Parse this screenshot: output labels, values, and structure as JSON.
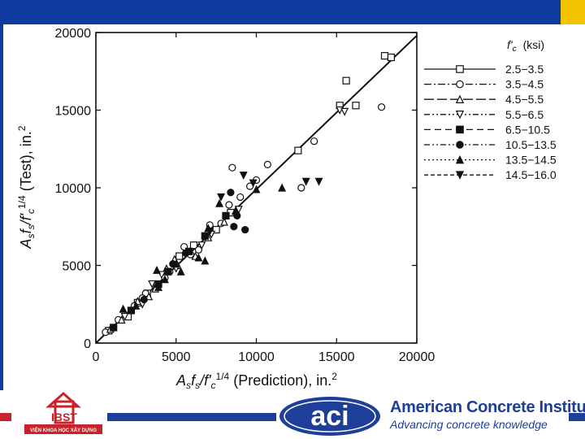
{
  "header": {
    "bar_color": "#0d3a9c",
    "accent_color": "#f2c500"
  },
  "chart_data": {
    "type": "scatter",
    "xlabel_parts": [
      "A",
      "s",
      "f",
      "s",
      "/f'",
      "c",
      "1/4",
      " (Prediction), in.",
      "2"
    ],
    "ylabel_parts": [
      "A",
      "s",
      "f",
      "s",
      "/f'",
      "c",
      "1/4",
      " (Test), in.",
      "2"
    ],
    "xlim": [
      0,
      20000
    ],
    "ylim": [
      0,
      20000
    ],
    "x_ticks": [
      "0",
      "5000",
      "10000",
      "15000",
      "20000"
    ],
    "y_ticks": [
      "0",
      "5000",
      "10000",
      "15000",
      "20000"
    ],
    "legend_placement": "right",
    "legend_header": [
      "f'",
      "c",
      "(ksi)"
    ],
    "fit_line": {
      "x": [
        0,
        20000
      ],
      "y": [
        0,
        19800
      ]
    },
    "series": [
      {
        "name": "2.5−3.5",
        "marker": "open-square",
        "dash": "solid",
        "points": [
          [
            800,
            800
          ],
          [
            2000,
            1700
          ],
          [
            3200,
            3200
          ],
          [
            5200,
            5600
          ],
          [
            7500,
            7300
          ],
          [
            8400,
            8400
          ],
          [
            12600,
            12400
          ],
          [
            15200,
            15300
          ],
          [
            15600,
            16900
          ],
          [
            16200,
            15300
          ],
          [
            18000,
            18500
          ],
          [
            18400,
            18400
          ],
          [
            2600,
            2600
          ],
          [
            6100,
            6300
          ]
        ]
      },
      {
        "name": "3.5−4.5",
        "marker": "open-circle",
        "dash": "dash-dot",
        "points": [
          [
            600,
            700
          ],
          [
            1400,
            1500
          ],
          [
            2400,
            2400
          ],
          [
            3100,
            3200
          ],
          [
            3800,
            3600
          ],
          [
            4600,
            4600
          ],
          [
            5500,
            6200
          ],
          [
            6400,
            6000
          ],
          [
            7100,
            7600
          ],
          [
            7800,
            7700
          ],
          [
            8500,
            11300
          ],
          [
            9000,
            9400
          ],
          [
            10000,
            10500
          ],
          [
            10700,
            11500
          ],
          [
            12800,
            10000
          ],
          [
            13600,
            13000
          ],
          [
            17800,
            15200
          ],
          [
            2900,
            2900
          ],
          [
            4300,
            4200
          ],
          [
            5900,
            5700
          ],
          [
            8300,
            8900
          ],
          [
            9600,
            10100
          ]
        ]
      },
      {
        "name": "4.5−5.5",
        "marker": "open-triangle",
        "dash": "long-dash",
        "points": [
          [
            900,
            900
          ],
          [
            1600,
            1500
          ],
          [
            2600,
            2700
          ],
          [
            3700,
            3500
          ],
          [
            4400,
            4800
          ],
          [
            5100,
            5000
          ],
          [
            6200,
            5600
          ],
          [
            7000,
            6800
          ],
          [
            8000,
            7800
          ],
          [
            4900,
            5400
          ],
          [
            3300,
            3000
          ]
        ]
      },
      {
        "name": "5.5−6.5",
        "marker": "open-triangle-down",
        "dash": "dash-dot-dot",
        "points": [
          [
            1800,
            1700
          ],
          [
            2900,
            2500
          ],
          [
            4100,
            4400
          ],
          [
            5000,
            4800
          ],
          [
            7200,
            7000
          ],
          [
            8900,
            8600
          ],
          [
            15200,
            15000
          ],
          [
            15500,
            14900
          ],
          [
            3500,
            3800
          ],
          [
            6600,
            6300
          ]
        ]
      },
      {
        "name": "6.5−10.5",
        "marker": "filled-square",
        "dash": "dash",
        "points": [
          [
            1100,
            1000
          ],
          [
            2200,
            2100
          ],
          [
            4500,
            4600
          ],
          [
            5800,
            5900
          ],
          [
            8100,
            8200
          ],
          [
            3900,
            3800
          ],
          [
            6800,
            6900
          ]
        ]
      },
      {
        "name": "10.5−13.5",
        "marker": "filled-circle",
        "dash": "dash-dot-dot",
        "points": [
          [
            3000,
            2800
          ],
          [
            5600,
            5800
          ],
          [
            8400,
            9700
          ],
          [
            8600,
            7500
          ],
          [
            9300,
            7300
          ],
          [
            8800,
            8200
          ],
          [
            4800,
            5100
          ]
        ]
      },
      {
        "name": "13.5−14.5",
        "marker": "filled-triangle",
        "dash": "dotted",
        "points": [
          [
            1700,
            2200
          ],
          [
            2500,
            2400
          ],
          [
            3800,
            4700
          ],
          [
            4300,
            4100
          ],
          [
            5000,
            5100
          ],
          [
            5300,
            4600
          ],
          [
            6400,
            5500
          ],
          [
            7000,
            7400
          ],
          [
            7700,
            9000
          ],
          [
            8700,
            8500
          ],
          [
            10000,
            9900
          ],
          [
            11600,
            10000
          ],
          [
            6800,
            5300
          ],
          [
            3900,
            3600
          ]
        ]
      },
      {
        "name": "14.5−16.0",
        "marker": "filled-triangle-down",
        "dash": "short-dash",
        "points": [
          [
            7800,
            9400
          ],
          [
            9200,
            10800
          ],
          [
            9800,
            10300
          ],
          [
            13100,
            10400
          ],
          [
            13900,
            10400
          ],
          [
            7100,
            7200
          ]
        ]
      }
    ]
  },
  "footer": {
    "brand_title": "American Concrete Institute",
    "brand_title_mark": "®",
    "brand_tagline": "Advancing concrete knowledge",
    "aci_logo_text": "aci",
    "ibst_letters": "IBST",
    "ibst_caption": "VIỆN KHOA HỌC XÂY DỰNG",
    "stripe_color": "#1d3f9a",
    "accent_color": "#c8222a"
  }
}
